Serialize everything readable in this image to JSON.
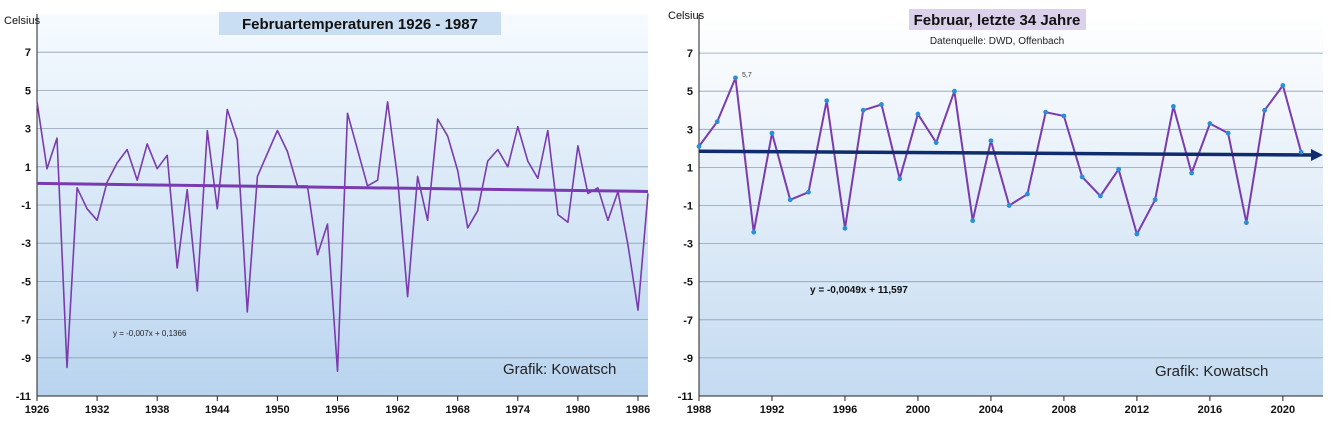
{
  "chart_data": [
    {
      "type": "line",
      "title": "Februartemperaturen 1926 - 1987",
      "ylabel": "Celsius",
      "annotation": "y = -0,007x + 0,1366",
      "credit": "Grafik: Kowatsch",
      "ylim": [
        -11,
        9
      ],
      "xlim": [
        1926,
        1987
      ],
      "yticks": [
        "7",
        "5",
        "3",
        "1",
        "-1",
        "-3",
        "-5",
        "-7",
        "-9",
        "-11"
      ],
      "xticks": [
        "1926",
        "1932",
        "1938",
        "1944",
        "1950",
        "1956",
        "1962",
        "1968",
        "1974",
        "1980",
        "1986"
      ],
      "grid": true,
      "series": [
        {
          "x": [
            1926,
            1927,
            1928,
            1929,
            1930,
            1931,
            1932,
            1933,
            1934,
            1935,
            1936,
            1937,
            1938,
            1939,
            1940,
            1941,
            1942,
            1943,
            1944,
            1945,
            1946,
            1947,
            1948,
            1949,
            1950,
            1951,
            1952,
            1953,
            1954,
            1955,
            1956,
            1957,
            1958,
            1959,
            1960,
            1961,
            1962,
            1963,
            1964,
            1965,
            1966,
            1967,
            1968,
            1969,
            1970,
            1971,
            1972,
            1973,
            1974,
            1975,
            1976,
            1977,
            1978,
            1979,
            1980,
            1981,
            1982,
            1983,
            1984,
            1985,
            1986,
            1987
          ],
          "values": [
            4.4,
            0.9,
            2.5,
            -9.5,
            -0.1,
            -1.2,
            -1.8,
            0.2,
            1.2,
            1.9,
            0.3,
            2.2,
            0.9,
            1.6,
            -4.3,
            -0.2,
            -5.5,
            2.9,
            -1.2,
            4.0,
            2.4,
            -6.6,
            0.5,
            1.7,
            2.9,
            1.8,
            0.0,
            0.0,
            -3.6,
            -2.0,
            -9.7,
            3.8,
            1.9,
            0.0,
            0.3,
            4.4,
            0.4,
            -5.8,
            0.5,
            -1.8,
            3.5,
            2.6,
            0.8,
            -2.2,
            -1.3,
            1.3,
            1.9,
            1.0,
            3.1,
            1.3,
            0.4,
            2.9,
            -1.5,
            -1.9,
            2.1,
            -0.4,
            -0.1,
            -1.8,
            -0.3,
            -3.1,
            -6.5,
            -0.4
          ]
        },
        {
          "name": "trend",
          "x": [
            1926,
            1987
          ],
          "values": [
            0.13,
            -0.29
          ]
        }
      ]
    },
    {
      "type": "line",
      "title": "Februar, letzte 34 Jahre",
      "subtitle": "Datenquelle: DWD, Offenbach",
      "ylabel": "Celsius",
      "annotation": "y = -0,0049x + 11,597",
      "credit": "Grafik: Kowatsch",
      "point_label": "5,7",
      "ylim": [
        -11,
        9
      ],
      "xlim": [
        1988,
        2022.2
      ],
      "yticks": [
        "7",
        "5",
        "3",
        "1",
        "-1",
        "-3",
        "-5",
        "-7",
        "-9",
        "-11"
      ],
      "xticks": [
        "1988",
        "1992",
        "1996",
        "2000",
        "2004",
        "2008",
        "2012",
        "2016",
        "2020"
      ],
      "grid": true,
      "series": [
        {
          "x": [
            1988,
            1989,
            1990,
            1991,
            1992,
            1993,
            1994,
            1995,
            1996,
            1997,
            1998,
            1999,
            2000,
            2001,
            2002,
            2003,
            2004,
            2005,
            2006,
            2007,
            2008,
            2009,
            2010,
            2011,
            2012,
            2013,
            2014,
            2015,
            2016,
            2017,
            2018,
            2019,
            2020,
            2021
          ],
          "values": [
            2.1,
            3.4,
            5.7,
            -2.4,
            2.8,
            -0.7,
            -0.3,
            4.5,
            -2.2,
            4.0,
            4.3,
            0.4,
            3.8,
            2.3,
            5.0,
            -1.8,
            2.4,
            -1.0,
            -0.4,
            3.9,
            3.7,
            0.5,
            -0.5,
            0.9,
            -2.5,
            -0.7,
            4.2,
            0.7,
            3.3,
            2.8,
            -1.9,
            4.0,
            5.3,
            1.8
          ]
        },
        {
          "name": "trend",
          "x": [
            1988,
            2022.2
          ],
          "values": [
            1.85,
            1.65
          ]
        }
      ]
    }
  ],
  "colors": {
    "line": "#7a3bb0",
    "trend_left": "#7a3bb0",
    "trend_right": "#0f2d6e",
    "marker": "#2a8fd6",
    "bg_top": "#f6fbff",
    "bg_bottom": "#b9d4ef",
    "grid": "#8fa0b3",
    "title_bg_left": "#c9def2",
    "title_bg_right": "#dcd1ea"
  }
}
